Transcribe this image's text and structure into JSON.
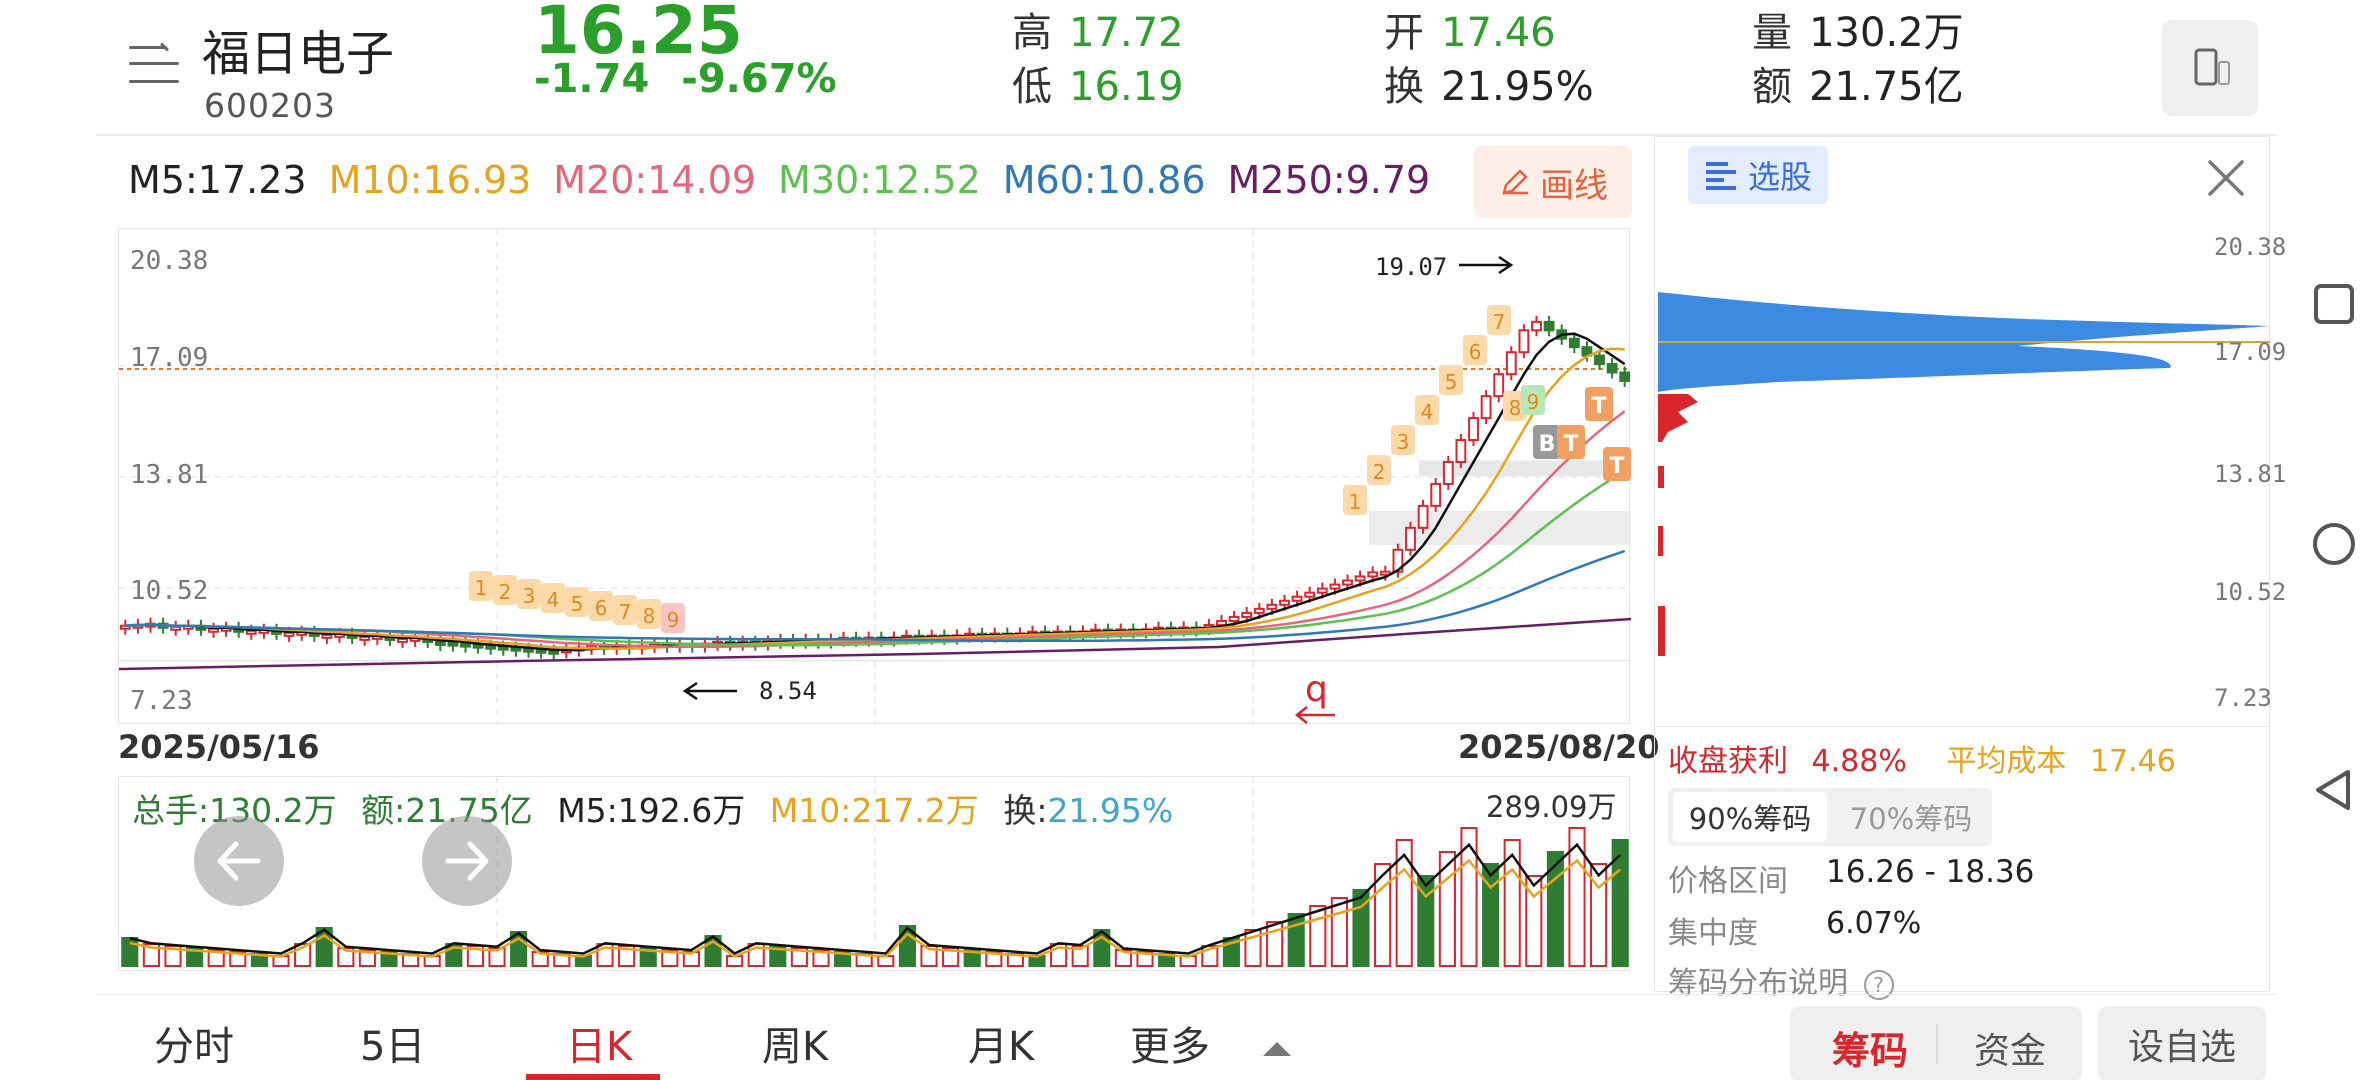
{
  "header": {
    "stock_name": "福日电子",
    "stock_code": "600203",
    "price": "16.25",
    "change": "-1.74",
    "change_pct": "-9.67%",
    "high_label": "高",
    "high": "17.72",
    "low_label": "低",
    "low": "16.19",
    "open_label": "开",
    "open": "17.46",
    "turnover_label": "换",
    "turnover": "21.95%",
    "volume_label": "量",
    "volume": "130.2万",
    "amount_label": "额",
    "amount": "21.75亿"
  },
  "ma": [
    {
      "text": "M5:17.23",
      "color": "#222222"
    },
    {
      "text": "M10:16.93",
      "color": "#e8a21c"
    },
    {
      "text": "M20:14.09",
      "color": "#e5667a"
    },
    {
      "text": "M30:12.52",
      "color": "#5bc24f"
    },
    {
      "text": "M60:10.86",
      "color": "#2f78b8"
    },
    {
      "text": "M250:9.79",
      "color": "#6a1d64"
    }
  ],
  "draw_button": "画线",
  "chart": {
    "y_ticks": [
      "20.38",
      "17.09",
      "13.81",
      "10.52",
      "7.23"
    ],
    "start_date": "2025/05/16",
    "end_date": "2025/08/20",
    "high_note": "19.07",
    "low_note": "8.54",
    "marker_q": "q",
    "td_up_left": [
      "1",
      "2",
      "3",
      "4",
      "5",
      "6",
      "7",
      "8",
      "9"
    ],
    "td_up_right": [
      "1",
      "2",
      "3",
      "4",
      "5",
      "6",
      "7"
    ],
    "td_right_tail": [
      "8",
      "9"
    ],
    "signals": [
      "B",
      "T",
      "T",
      "T"
    ]
  },
  "volume": {
    "total_label": "总手:130.2万",
    "amount_label": "额:21.75亿",
    "m5": "M5:192.6万",
    "m10": "M10:217.2万",
    "turn_label": "换:",
    "turn_value": "21.95%",
    "max": "289.09万"
  },
  "chips": {
    "select_label": "选股",
    "y_ticks": [
      "20.38",
      "17.09",
      "13.81",
      "10.52",
      "7.23"
    ],
    "profit_label": "收盘获利",
    "profit_value": "4.88%",
    "avg_cost_label": "平均成本",
    "avg_cost_value": "17.46",
    "tab_90": "90%筹码",
    "tab_70": "70%筹码",
    "range_label": "价格区间",
    "range_value": "16.26 - 18.36",
    "concentration_label": "集中度",
    "concentration_value": "6.07%",
    "explain_label": "筹码分布说明"
  },
  "tabs": {
    "items": [
      "分时",
      "5日",
      "日K",
      "周K",
      "月K",
      "更多"
    ],
    "active_index": 2
  },
  "bottom_buttons": {
    "chips": "筹码",
    "funds": "资金",
    "add_watch": "设自选"
  },
  "colors": {
    "up": "#d9262d",
    "down": "#2aa02a",
    "accent_blue": "#3a6fd8",
    "orange": "#e8603c"
  }
}
